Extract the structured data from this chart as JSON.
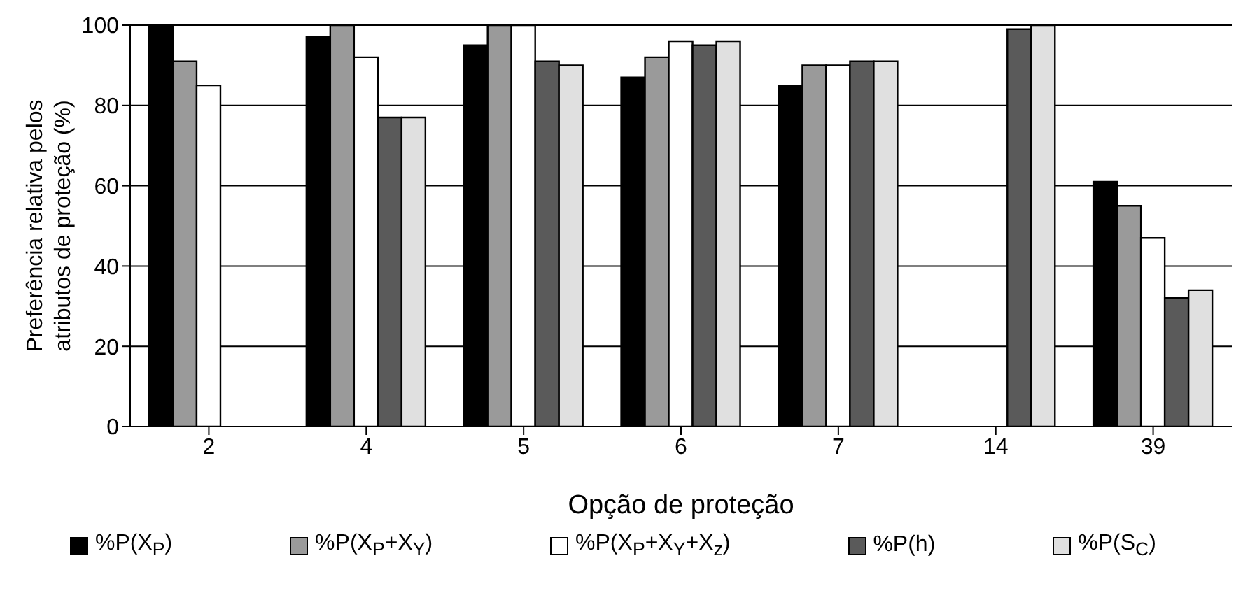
{
  "chart_data": {
    "type": "bar",
    "xlabel": "Opção de proteção",
    "ylabel": "Preferência relativa pelos atributos de proteção (%)",
    "categories": [
      "2",
      "4",
      "5",
      "6",
      "7",
      "14",
      "39"
    ],
    "series": [
      {
        "name": "%P(X$_{P}$)",
        "color": "#000000",
        "values": [
          100,
          97,
          95,
          87,
          85,
          0,
          61
        ]
      },
      {
        "name": "%P(X$_{P}$+X$_{Y}$)",
        "color": "#9a9a9a",
        "values": [
          91,
          100,
          100,
          92,
          90,
          0,
          55
        ]
      },
      {
        "name": "%P(X$_{P}$+X$_{Y}$+X$_{z}$)",
        "color": "#ffffff",
        "values": [
          85,
          92,
          100,
          96,
          90,
          0,
          47
        ]
      },
      {
        "name": "%P(h)",
        "color": "#5a5a5a",
        "values": [
          0,
          77,
          91,
          95,
          91,
          99,
          32
        ]
      },
      {
        "name": "%P(S$_{C}$)",
        "color": "#e0e0e0",
        "values": [
          0,
          77,
          90,
          96,
          91,
          100,
          34
        ]
      }
    ],
    "ylim": [
      0,
      100
    ],
    "yticks": [
      0,
      20,
      40,
      60,
      80,
      100
    ],
    "grid": "y",
    "legend": "bottom"
  }
}
